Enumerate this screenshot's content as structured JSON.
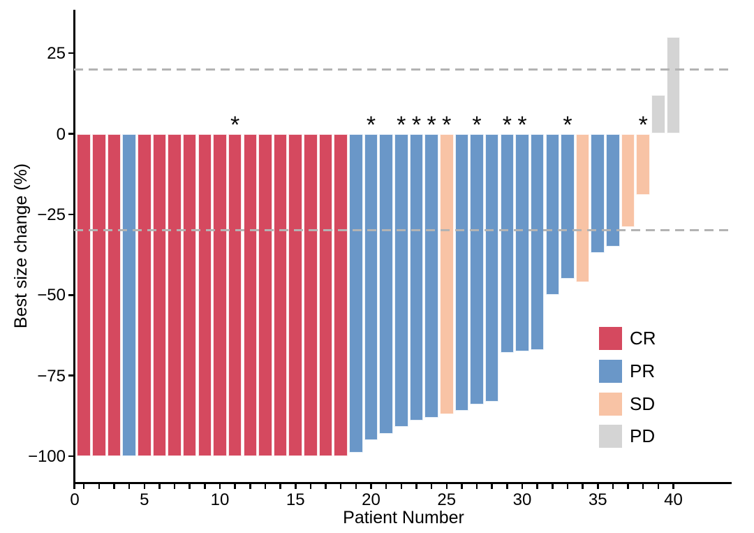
{
  "chart_data": {
    "type": "bar",
    "chart_kind": "waterfall-best-response",
    "title": "",
    "xlabel": "Patient Number",
    "ylabel": "Best size change (%)",
    "xlim": [
      0,
      41
    ],
    "ylim": [
      -108,
      38
    ],
    "yticks": [
      25,
      0,
      -25,
      -50,
      -75,
      -100
    ],
    "xticks_labeled": [
      0,
      5,
      10,
      15,
      20,
      25,
      30,
      35,
      40
    ],
    "xticks_minor_every": 1,
    "grid": "off",
    "legend_position": "inside-bottom-right",
    "annotation_symbol": "*",
    "reference_lines": [
      {
        "y": 20,
        "style": "dashed",
        "color": "#B3B3B3"
      },
      {
        "y": -30,
        "style": "dashed",
        "color": "#B3B3B3"
      }
    ],
    "colors": {
      "CR": "#D5495F",
      "PR": "#6A97C8",
      "SD": "#F8C3A5",
      "PD": "#D4D4D4"
    },
    "legend": [
      {
        "label": "CR",
        "color": "#D5495F"
      },
      {
        "label": "PR",
        "color": "#6A97C8"
      },
      {
        "label": "SD",
        "color": "#F8C3A5"
      },
      {
        "label": "PD",
        "color": "#D4D4D4"
      }
    ],
    "patients": [
      {
        "patient": 1,
        "value": -100,
        "response": "CR",
        "asterisk": false
      },
      {
        "patient": 2,
        "value": -100,
        "response": "CR",
        "asterisk": false
      },
      {
        "patient": 3,
        "value": -100,
        "response": "CR",
        "asterisk": false
      },
      {
        "patient": 4,
        "value": -100,
        "response": "PR",
        "asterisk": false
      },
      {
        "patient": 5,
        "value": -100,
        "response": "CR",
        "asterisk": false
      },
      {
        "patient": 6,
        "value": -100,
        "response": "CR",
        "asterisk": false
      },
      {
        "patient": 7,
        "value": -100,
        "response": "CR",
        "asterisk": false
      },
      {
        "patient": 8,
        "value": -100,
        "response": "CR",
        "asterisk": false
      },
      {
        "patient": 9,
        "value": -100,
        "response": "CR",
        "asterisk": false
      },
      {
        "patient": 10,
        "value": -100,
        "response": "CR",
        "asterisk": false
      },
      {
        "patient": 11,
        "value": -100,
        "response": "CR",
        "asterisk": true
      },
      {
        "patient": 12,
        "value": -100,
        "response": "CR",
        "asterisk": false
      },
      {
        "patient": 13,
        "value": -100,
        "response": "CR",
        "asterisk": false
      },
      {
        "patient": 14,
        "value": -100,
        "response": "CR",
        "asterisk": false
      },
      {
        "patient": 15,
        "value": -100,
        "response": "CR",
        "asterisk": false
      },
      {
        "patient": 16,
        "value": -100,
        "response": "CR",
        "asterisk": false
      },
      {
        "patient": 17,
        "value": -100,
        "response": "CR",
        "asterisk": false
      },
      {
        "patient": 18,
        "value": -100,
        "response": "CR",
        "asterisk": false
      },
      {
        "patient": 19,
        "value": -99,
        "response": "PR",
        "asterisk": false
      },
      {
        "patient": 20,
        "value": -95,
        "response": "PR",
        "asterisk": true
      },
      {
        "patient": 21,
        "value": -93,
        "response": "PR",
        "asterisk": false
      },
      {
        "patient": 22,
        "value": -91,
        "response": "PR",
        "asterisk": true
      },
      {
        "patient": 23,
        "value": -89,
        "response": "PR",
        "asterisk": true
      },
      {
        "patient": 24,
        "value": -88,
        "response": "PR",
        "asterisk": true
      },
      {
        "patient": 25,
        "value": -87,
        "response": "SD",
        "asterisk": true
      },
      {
        "patient": 26,
        "value": -86,
        "response": "PR",
        "asterisk": false
      },
      {
        "patient": 27,
        "value": -84,
        "response": "PR",
        "asterisk": true
      },
      {
        "patient": 28,
        "value": -83,
        "response": "PR",
        "asterisk": false
      },
      {
        "patient": 29,
        "value": -68,
        "response": "PR",
        "asterisk": true
      },
      {
        "patient": 30,
        "value": -67.5,
        "response": "PR",
        "asterisk": true
      },
      {
        "patient": 31,
        "value": -67,
        "response": "PR",
        "asterisk": false
      },
      {
        "patient": 32,
        "value": -50,
        "response": "PR",
        "asterisk": false
      },
      {
        "patient": 33,
        "value": -45,
        "response": "PR",
        "asterisk": true
      },
      {
        "patient": 34,
        "value": -46,
        "response": "SD",
        "asterisk": false
      },
      {
        "patient": 35,
        "value": -37,
        "response": "PR",
        "asterisk": false
      },
      {
        "patient": 36,
        "value": -35,
        "response": "PR",
        "asterisk": false
      },
      {
        "patient": 37,
        "value": -29,
        "response": "SD",
        "asterisk": false
      },
      {
        "patient": 38,
        "value": -19,
        "response": "SD",
        "asterisk": true
      },
      {
        "patient": 39,
        "value": 12,
        "response": "PD",
        "asterisk": false
      },
      {
        "patient": 40,
        "value": 30,
        "response": "PD",
        "asterisk": false
      }
    ]
  }
}
